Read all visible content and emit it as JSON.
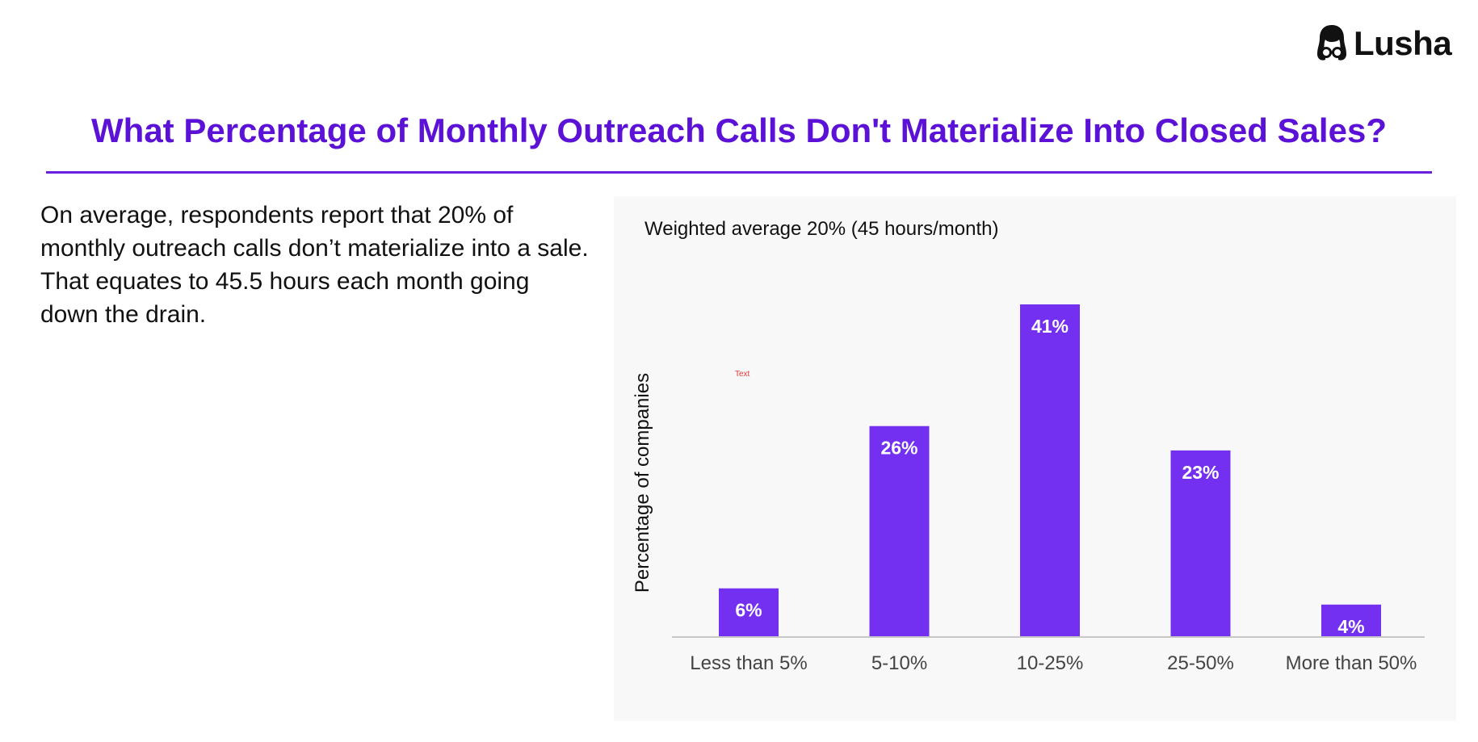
{
  "brand": {
    "name": "Lusha",
    "logo_icon": "lusha-avatar-icon"
  },
  "header": {
    "title": "What Percentage of Monthly Outreach Calls Don't Materialize Into Closed Sales?"
  },
  "summary": {
    "text": "On average, respondents report that 20% of monthly outreach calls don’t materialize into a sale. That equates to 45.5 hours each month going down the drain."
  },
  "colors": {
    "accent": "#5b12d6",
    "bar": "#7430f0",
    "panel": "#f8f8f8"
  },
  "chart_data": {
    "type": "bar",
    "title": "Weighted average 20% (45 hours/month)",
    "xlabel": "",
    "ylabel": "Percentage of companies",
    "categories": [
      "Less than 5%",
      "5-10%",
      "10-25%",
      "25-50%",
      "More than 50%"
    ],
    "values": [
      6,
      26,
      41,
      23,
      4
    ],
    "data_labels": [
      "6%",
      "26%",
      "41%",
      "23%",
      "4%"
    ],
    "ylim": [
      0,
      41
    ],
    "grid": false,
    "annotations": [
      "Text"
    ]
  }
}
